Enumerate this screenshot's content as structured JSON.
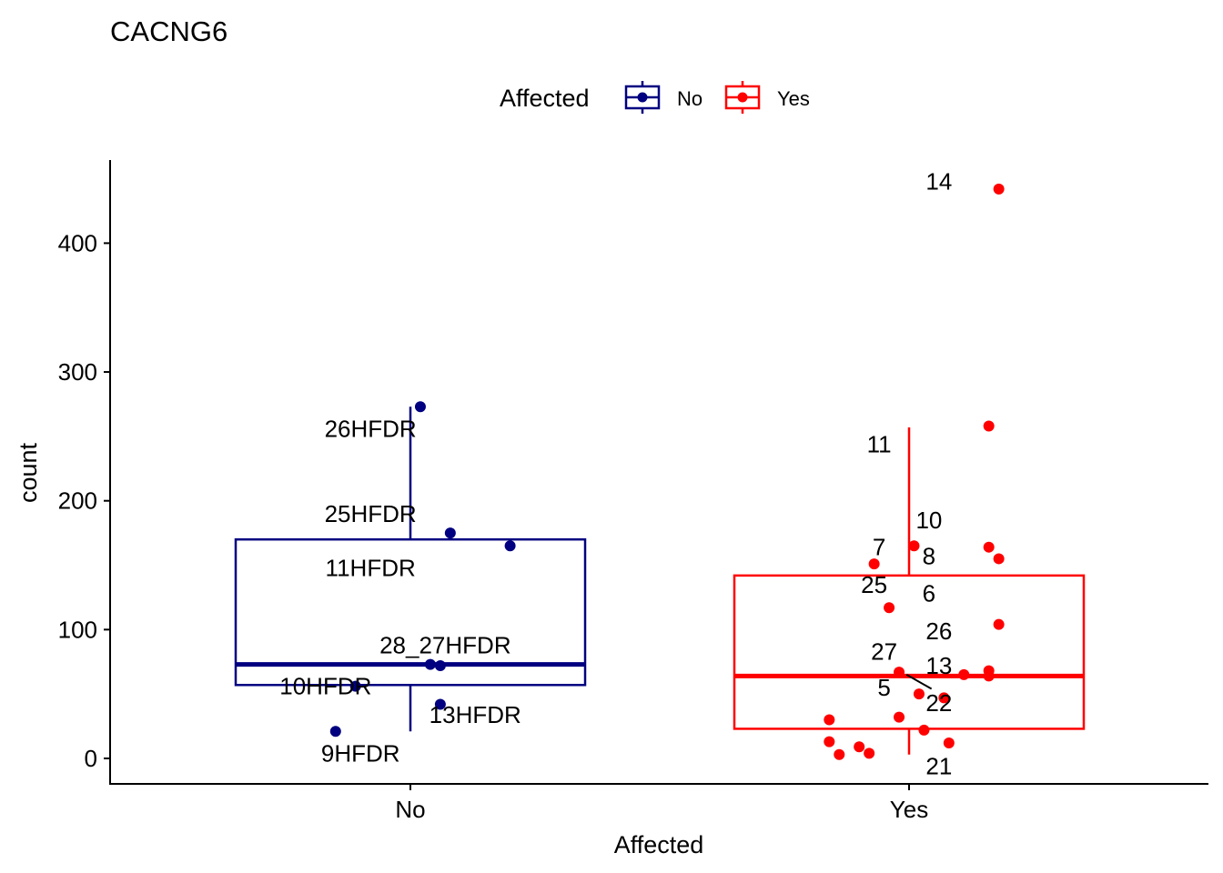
{
  "chart_data": {
    "type": "boxplot",
    "title": "CACNG6",
    "xlabel": "Affected",
    "ylabel": "count",
    "categories": [
      "No",
      "Yes"
    ],
    "ylim": [
      -20,
      465
    ],
    "yticks": [
      0,
      100,
      200,
      300,
      400
    ],
    "grid": false,
    "legend": {
      "title": "Affected",
      "position": "top",
      "entries": [
        {
          "name": "No",
          "color": "#000080"
        },
        {
          "name": "Yes",
          "color": "#ff0000"
        }
      ]
    },
    "boxes": [
      {
        "group": "No",
        "color": "#000080",
        "whisker_low": 21,
        "q1": 57,
        "median": 73,
        "q3": 170,
        "whisker_high": 273
      },
      {
        "group": "Yes",
        "color": "#ff0000",
        "whisker_low": 3,
        "q1": 23,
        "median": 64,
        "q3": 142,
        "whisker_high": 257
      }
    ],
    "points": [
      {
        "group": "No",
        "x": 1.02,
        "y": 273,
        "label": "26HFDR",
        "lx": 0.92,
        "ly": 256
      },
      {
        "group": "No",
        "x": 1.08,
        "y": 175,
        "label": "25HFDR",
        "lx": 0.92,
        "ly": 190
      },
      {
        "group": "No",
        "x": 1.2,
        "y": 165,
        "label": "11HFDR",
        "lx": 0.92,
        "ly": 148
      },
      {
        "group": "No",
        "x": 1.04,
        "y": 73,
        "label": "28_27HFDR",
        "lx": 1.07,
        "ly": 88
      },
      {
        "group": "No",
        "x": 1.06,
        "y": 72,
        "label": "",
        "lx": 0,
        "ly": 0
      },
      {
        "group": "No",
        "x": 1.06,
        "y": 42,
        "label": "13HFDR",
        "lx": 1.13,
        "ly": 34
      },
      {
        "group": "No",
        "x": 0.85,
        "y": 21,
        "label": "9HFDR",
        "lx": 0.9,
        "ly": 4
      },
      {
        "group": "No",
        "x": 0.89,
        "y": 56,
        "label": "10HFDR",
        "lx": 0.83,
        "ly": 56
      },
      {
        "group": "Yes",
        "x": 2.18,
        "y": 442,
        "label": "14",
        "lx": 2.06,
        "ly": 448
      },
      {
        "group": "Yes",
        "x": 2.16,
        "y": 258,
        "label": "11",
        "lx": 1.94,
        "ly": 244
      },
      {
        "group": "Yes",
        "x": 2.01,
        "y": 165,
        "label": "10",
        "lx": 2.04,
        "ly": 185
      },
      {
        "group": "Yes",
        "x": 1.93,
        "y": 151,
        "label": "7",
        "lx": 1.94,
        "ly": 164
      },
      {
        "group": "Yes",
        "x": 2.16,
        "y": 164,
        "label": "8",
        "lx": 2.04,
        "ly": 157
      },
      {
        "group": "Yes",
        "x": 2.18,
        "y": 155,
        "label": "25",
        "lx": 1.93,
        "ly": 135
      },
      {
        "group": "Yes",
        "x": 1.96,
        "y": 117,
        "label": "6",
        "lx": 2.04,
        "ly": 128
      },
      {
        "group": "Yes",
        "x": 2.18,
        "y": 104,
        "label": "26",
        "lx": 2.06,
        "ly": 99
      },
      {
        "group": "Yes",
        "x": 1.98,
        "y": 67,
        "label": "27",
        "lx": 1.95,
        "ly": 83
      },
      {
        "group": "Yes",
        "x": 2.16,
        "y": 68,
        "label": "13",
        "lx": 2.06,
        "ly": 72
      },
      {
        "group": "Yes",
        "x": 2.11,
        "y": 65,
        "label": "",
        "lx": 0,
        "ly": 0
      },
      {
        "group": "Yes",
        "x": 2.16,
        "y": 64,
        "label": "",
        "lx": 0,
        "ly": 0
      },
      {
        "group": "Yes",
        "x": 2.02,
        "y": 50,
        "label": "5",
        "lx": 1.95,
        "ly": 55
      },
      {
        "group": "Yes",
        "x": 2.07,
        "y": 47,
        "label": "22",
        "lx": 2.06,
        "ly": 43
      },
      {
        "group": "Yes",
        "x": 1.98,
        "y": 32,
        "label": "",
        "lx": 0,
        "ly": 0
      },
      {
        "group": "Yes",
        "x": 1.84,
        "y": 30,
        "label": "",
        "lx": 0,
        "ly": 0
      },
      {
        "group": "Yes",
        "x": 2.03,
        "y": 22,
        "label": "",
        "lx": 0,
        "ly": 0
      },
      {
        "group": "Yes",
        "x": 1.84,
        "y": 13,
        "label": "",
        "lx": 0,
        "ly": 0
      },
      {
        "group": "Yes",
        "x": 2.08,
        "y": 12,
        "label": "",
        "lx": 0,
        "ly": 0
      },
      {
        "group": "Yes",
        "x": 1.9,
        "y": 9,
        "label": "",
        "lx": 0,
        "ly": 0
      },
      {
        "group": "Yes",
        "x": 1.86,
        "y": 3,
        "label": "",
        "lx": 0,
        "ly": 0
      },
      {
        "group": "Yes",
        "x": 1.92,
        "y": 4,
        "label": "21",
        "lx": 2.06,
        "ly": -6
      }
    ]
  }
}
